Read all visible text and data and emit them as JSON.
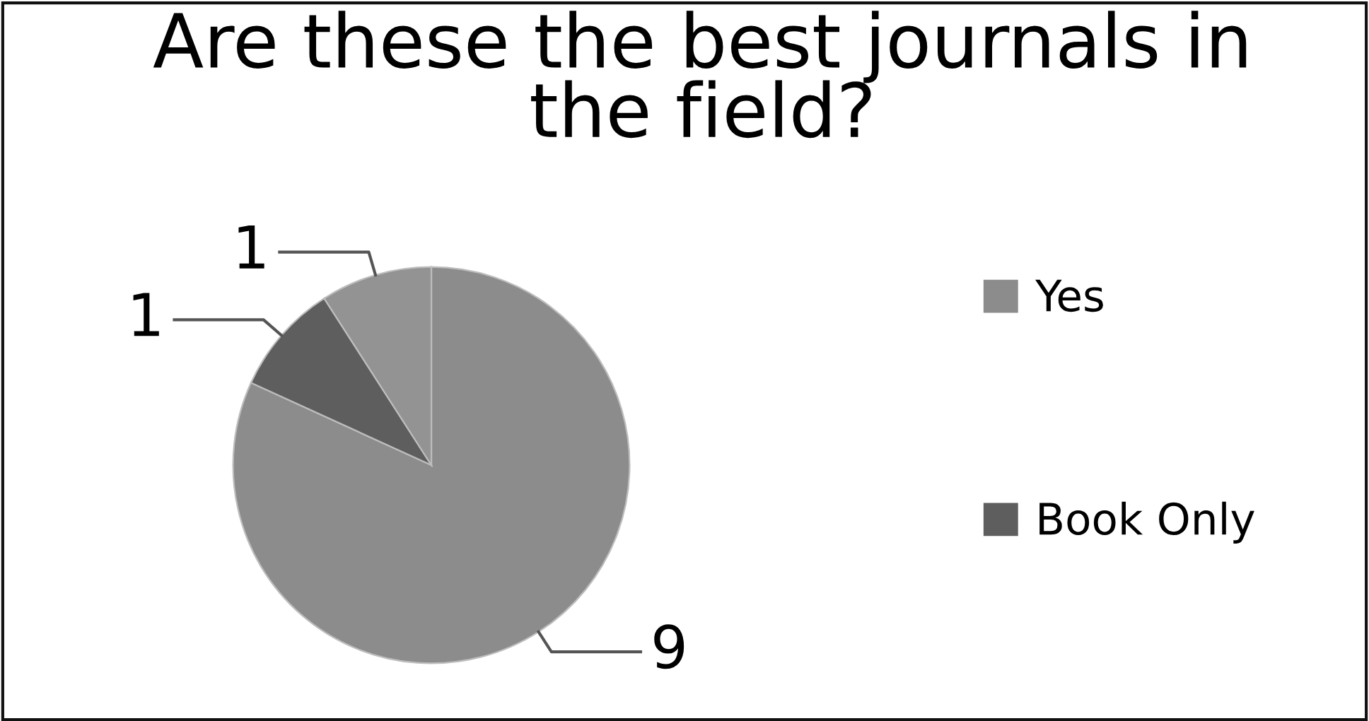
{
  "chart_data": {
    "type": "pie",
    "title": "Are these the best journals in the field?",
    "categories": [
      "Yes",
      "Book Only",
      null
    ],
    "values": [
      9,
      1,
      1
    ],
    "colors": [
      "#8c8c8c",
      "#5e5e5e",
      "#939393"
    ],
    "data_labels": true,
    "legend": "right"
  }
}
